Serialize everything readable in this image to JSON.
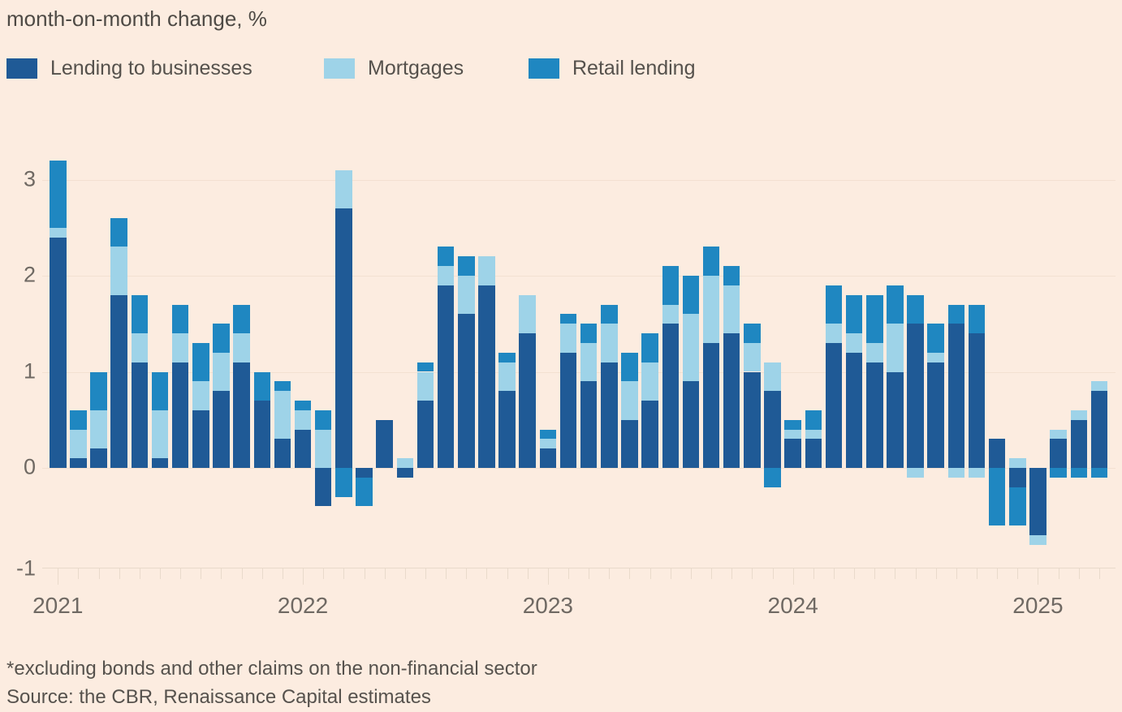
{
  "title": "month-on-month change, %",
  "legend": [
    {
      "label": "Lending to businesses",
      "color": "#1F5A96"
    },
    {
      "label": "Mortgages",
      "color": "#9ED3E8"
    },
    {
      "label": "Retail lending",
      "color": "#1F87C1"
    }
  ],
  "footnote": "*excluding bonds and other claims on the non-financial sector",
  "source": "Source: the CBR, Renaissance Capital estimates",
  "colors": {
    "background": "#FCECE0",
    "gridline": "#F3E0D1",
    "axis": "#E9DACB",
    "axis_text": "#6F6963",
    "body_text": "#56524D"
  },
  "chart_data": {
    "type": "bar",
    "stacked": true,
    "title": "month-on-month change, %",
    "xlabel": "",
    "ylabel": "month-on-month change, %",
    "ylim": [
      -1,
      3.3
    ],
    "yticks": [
      3,
      2,
      1,
      0,
      -1
    ],
    "grid": true,
    "legend_position": "top",
    "year_labels": [
      "2021",
      "2022",
      "2023",
      "2024",
      "2025"
    ],
    "x": [
      "2021-01",
      "2021-02",
      "2021-03",
      "2021-04",
      "2021-05",
      "2021-06",
      "2021-07",
      "2021-08",
      "2021-09",
      "2021-10",
      "2021-11",
      "2021-12",
      "2022-01",
      "2022-02",
      "2022-03",
      "2022-04",
      "2022-05",
      "2022-06",
      "2022-07",
      "2022-08",
      "2022-09",
      "2022-10",
      "2022-11",
      "2022-12",
      "2023-01",
      "2023-02",
      "2023-03",
      "2023-04",
      "2023-05",
      "2023-06",
      "2023-07",
      "2023-08",
      "2023-09",
      "2023-10",
      "2023-11",
      "2023-12",
      "2024-01",
      "2024-02",
      "2024-03",
      "2024-04",
      "2024-05",
      "2024-06",
      "2024-07",
      "2024-08",
      "2024-09",
      "2024-10",
      "2024-11",
      "2024-12",
      "2025-01",
      "2025-02",
      "2025-03",
      "2025-04"
    ],
    "series": [
      {
        "name": "Lending to businesses",
        "color": "#1F5A96",
        "values": [
          2.4,
          0.1,
          0.2,
          1.8,
          1.1,
          0.1,
          1.1,
          0.6,
          0.8,
          1.1,
          0.7,
          0.3,
          0.4,
          -0.4,
          2.7,
          -0.1,
          0.5,
          -0.1,
          0.7,
          1.9,
          1.6,
          1.9,
          0.8,
          1.4,
          0.2,
          1.2,
          0.9,
          1.1,
          0.5,
          0.7,
          1.5,
          0.9,
          1.3,
          1.4,
          1.0,
          0.8,
          0.3,
          0.3,
          1.3,
          1.2,
          1.1,
          1.0,
          1.5,
          1.1,
          1.5,
          1.4,
          0.3,
          -0.2,
          -0.7,
          0.3,
          0.5,
          0.8
        ]
      },
      {
        "name": "Mortgages",
        "color": "#9ED3E8",
        "values": [
          0.1,
          0.3,
          0.4,
          0.5,
          0.3,
          0.5,
          0.3,
          0.3,
          0.4,
          0.3,
          0.0,
          0.5,
          0.2,
          0.4,
          0.4,
          0.0,
          0.0,
          0.1,
          0.3,
          0.2,
          0.4,
          0.3,
          0.3,
          0.4,
          0.1,
          0.3,
          0.4,
          0.4,
          0.4,
          0.4,
          0.2,
          0.7,
          0.7,
          0.5,
          0.3,
          0.3,
          0.1,
          0.1,
          0.2,
          0.2,
          0.2,
          0.5,
          -0.1,
          0.1,
          -0.1,
          -0.1,
          0.0,
          0.1,
          -0.1,
          0.1,
          0.1,
          0.1
        ]
      },
      {
        "name": "Retail lending",
        "color": "#1F87C1",
        "values": [
          0.7,
          0.2,
          0.4,
          0.3,
          0.4,
          0.4,
          0.3,
          0.4,
          0.3,
          0.3,
          0.3,
          0.1,
          0.1,
          0.2,
          -0.3,
          -0.3,
          0.0,
          0.0,
          0.1,
          0.2,
          0.2,
          0.0,
          0.1,
          0.0,
          0.1,
          0.1,
          0.2,
          0.2,
          0.3,
          0.3,
          0.4,
          0.4,
          0.3,
          0.2,
          0.2,
          -0.2,
          0.1,
          0.2,
          0.4,
          0.4,
          0.5,
          0.4,
          0.3,
          0.3,
          0.2,
          0.3,
          -0.6,
          -0.4,
          0.0,
          -0.1,
          -0.1,
          -0.1
        ]
      }
    ]
  }
}
